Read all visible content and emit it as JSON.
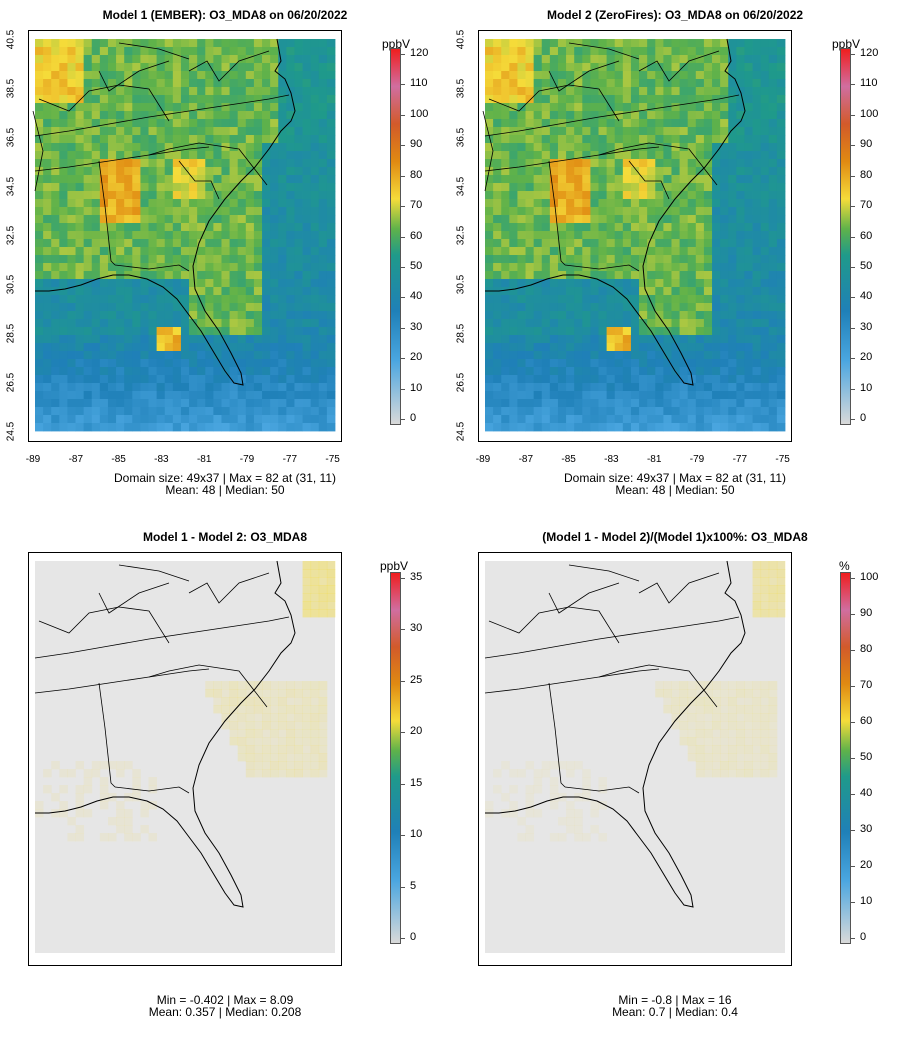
{
  "panels": [
    {
      "title": "Model 1 (EMBER): O3_MDA8 on 06/20/2022",
      "kind": "abs",
      "stats_line1": "Domain size: 49x37 | Max = 82 at (31, 11)",
      "stats_line2": "Mean: 48 |  Median: 50",
      "unit": "ppbV",
      "colorbar_ticks": [
        "0",
        "10",
        "20",
        "30",
        "40",
        "50",
        "60",
        "70",
        "80",
        "90",
        "100",
        "110",
        "120"
      ],
      "y_ticks": [
        "24.5",
        "26.5",
        "28.5",
        "30.5",
        "32.5",
        "34.5",
        "36.5",
        "38.5",
        "40.5"
      ],
      "x_ticks": [
        "-89",
        "-87",
        "-85",
        "-83",
        "-81",
        "-79",
        "-77",
        "-75"
      ]
    },
    {
      "title": "Model 2 (ZeroFires): O3_MDA8 on 06/20/2022",
      "kind": "abs",
      "stats_line1": "Domain size: 49x37 | Max = 82 at (31, 11)",
      "stats_line2": "Mean: 48 |  Median: 50",
      "unit": "ppbV",
      "colorbar_ticks": [
        "0",
        "10",
        "20",
        "30",
        "40",
        "50",
        "60",
        "70",
        "80",
        "90",
        "100",
        "110",
        "120"
      ],
      "y_ticks": [
        "24.5",
        "26.5",
        "28.5",
        "30.5",
        "32.5",
        "34.5",
        "36.5",
        "38.5",
        "40.5"
      ],
      "x_ticks": [
        "-89",
        "-87",
        "-85",
        "-83",
        "-81",
        "-79",
        "-77",
        "-75"
      ]
    },
    {
      "title": "Model 1 - Model 2: O3_MDA8",
      "kind": "diff",
      "stats_line1": "Min = -0.402 | Max = 8.09",
      "stats_line2": "Mean: 0.357 |  Median: 0.208",
      "unit": "ppbV",
      "colorbar_ticks": [
        "0",
        "5",
        "10",
        "15",
        "20",
        "25",
        "30",
        "35"
      ],
      "y_ticks": [],
      "x_ticks": []
    },
    {
      "title": "(Model 1 - Model 2)/(Model 1)x100%: O3_MDA8",
      "kind": "pct",
      "stats_line1": "Min = -0.8 | Max = 16",
      "stats_line2": "Mean: 0.7 |  Median: 0.4",
      "unit": "%",
      "colorbar_ticks": [
        "0",
        "10",
        "20",
        "30",
        "40",
        "50",
        "60",
        "70",
        "80",
        "90",
        "100"
      ],
      "y_ticks": [],
      "x_ticks": []
    }
  ],
  "colors": {
    "low": "#d9d9d9",
    "blue": "#4aa6e0",
    "mid_blue": "#1f80b8",
    "teal": "#1f9a8a",
    "green": "#5fb24a",
    "yellow": "#f5dc3a",
    "orange": "#e08a12",
    "red_orange": "#d25a2a",
    "pink": "#d06ea0",
    "red": "#f01e1e",
    "diff_bg": "#e6e6e6"
  }
}
